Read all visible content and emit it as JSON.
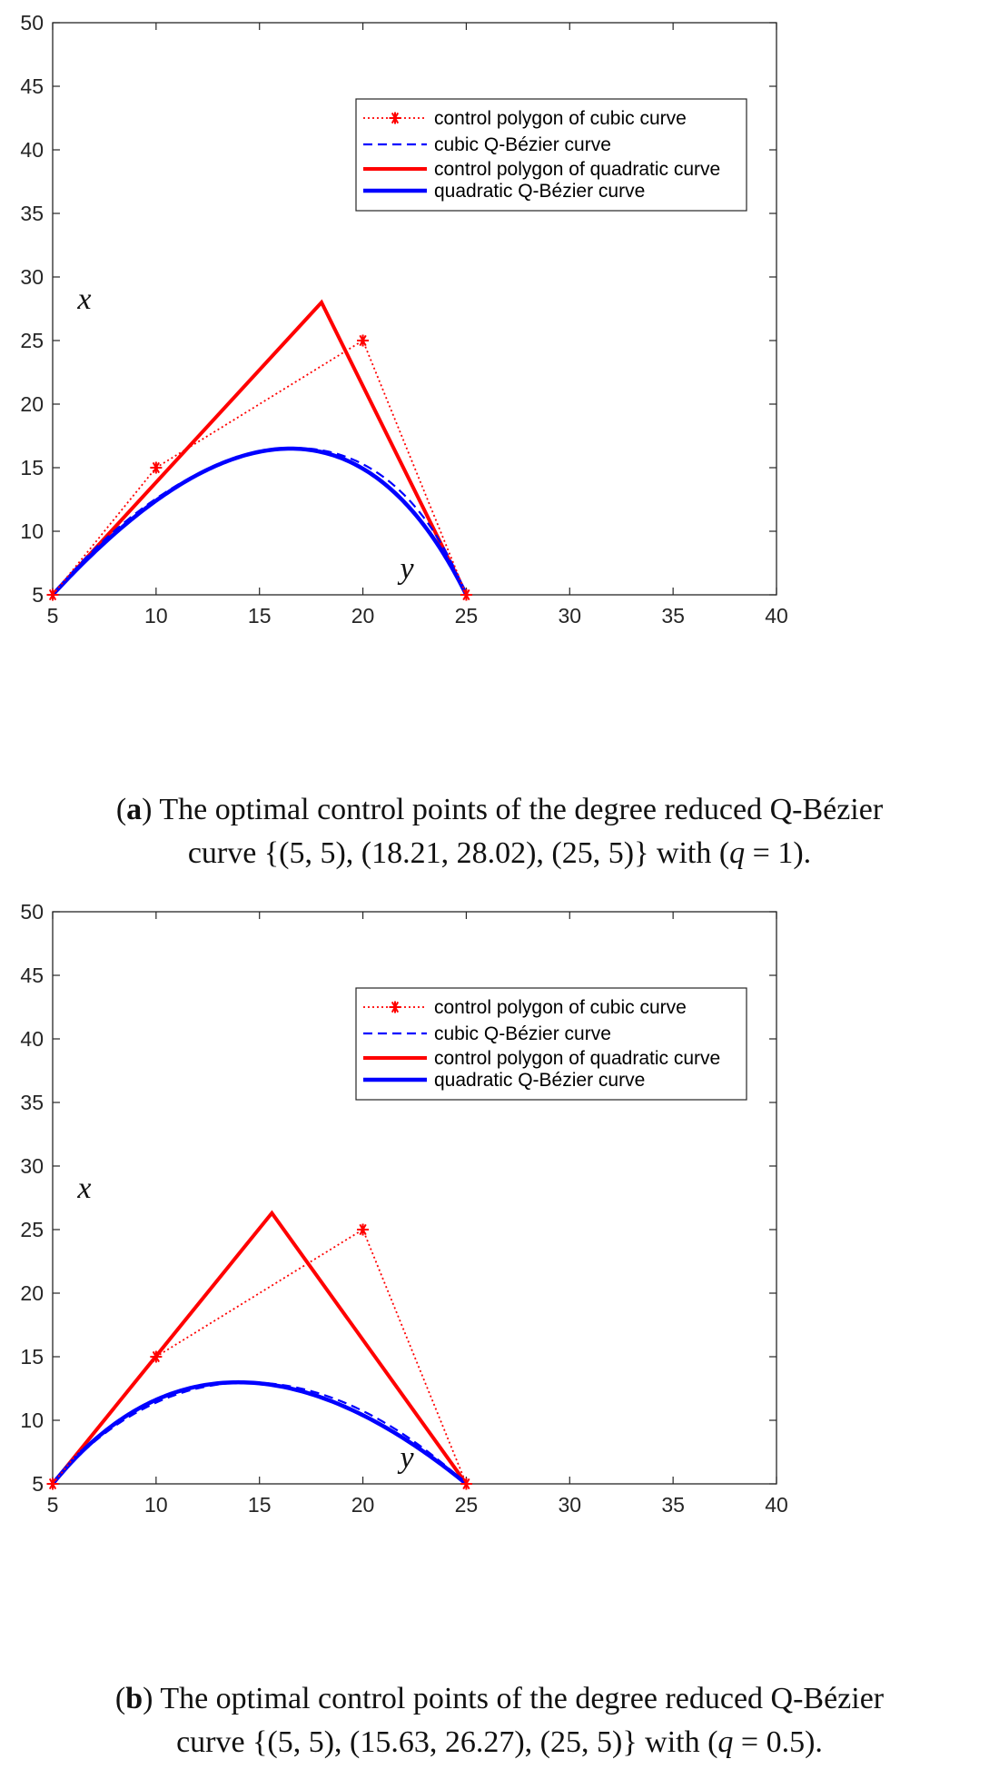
{
  "chart_data": [
    {
      "type": "line",
      "panel": "a",
      "xlim": [
        5,
        40
      ],
      "ylim": [
        5,
        50
      ],
      "xticks": [
        "5",
        "10",
        "15",
        "20",
        "25",
        "30",
        "35",
        "40"
      ],
      "yticks": [
        "5",
        "10",
        "15",
        "20",
        "25",
        "30",
        "35",
        "40",
        "45",
        "50"
      ],
      "x_tick_values": [
        5,
        10,
        15,
        20,
        25,
        30,
        35,
        40
      ],
      "y_tick_values": [
        5,
        10,
        15,
        20,
        25,
        30,
        35,
        40,
        45,
        50
      ],
      "annotations": [
        {
          "text": "x",
          "x": 6.2,
          "y": 27.5
        },
        {
          "text": "y",
          "x": 21.8,
          "y": 6.3
        }
      ],
      "legend": {
        "position": "top-right",
        "entries": [
          "control polygon of cubic curve",
          "cubic Q-Bézier curve",
          "control polygon of quadratic curve",
          "quadratic Q-Bézier curve"
        ]
      },
      "series": [
        {
          "name": "control polygon of cubic curve",
          "style": "dotted-star",
          "color": "#ff0000",
          "points": [
            [
              5,
              5
            ],
            [
              10,
              15
            ],
            [
              20,
              25
            ],
            [
              25,
              5
            ]
          ]
        },
        {
          "name": "cubic Q-Bézier curve",
          "style": "dashed",
          "color": "#0000ff",
          "control_points": [
            [
              5,
              5
            ],
            [
              10,
              15
            ],
            [
              20,
              25
            ],
            [
              25,
              5
            ]
          ],
          "q": 1
        },
        {
          "name": "control polygon of quadratic curve",
          "style": "solid-thick",
          "color": "#ff0000",
          "points": [
            [
              5,
              5
            ],
            [
              18,
              28
            ],
            [
              25,
              5
            ]
          ]
        },
        {
          "name": "quadratic Q-Bézier curve",
          "style": "solid-thick",
          "color": "#0000ff",
          "control_points": [
            [
              5,
              5
            ],
            [
              18,
              28
            ],
            [
              25,
              5
            ]
          ],
          "q": 1
        }
      ],
      "caption": {
        "label": "a",
        "line1": ") The optimal control points of the degree reduced Q-Bézier",
        "line2_pre": "curve {(5, 5), (18.21, 28.02), (25, 5)} with (",
        "q_symbol": "q",
        "line2_post": " = 1)."
      }
    },
    {
      "type": "line",
      "panel": "b",
      "xlim": [
        5,
        40
      ],
      "ylim": [
        5,
        50
      ],
      "xticks": [
        "5",
        "10",
        "15",
        "20",
        "25",
        "30",
        "35",
        "40"
      ],
      "yticks": [
        "5",
        "10",
        "15",
        "20",
        "25",
        "30",
        "35",
        "40",
        "45",
        "50"
      ],
      "x_tick_values": [
        5,
        10,
        15,
        20,
        25,
        30,
        35,
        40
      ],
      "y_tick_values": [
        5,
        10,
        15,
        20,
        25,
        30,
        35,
        40,
        45,
        50
      ],
      "annotations": [
        {
          "text": "x",
          "x": 6.2,
          "y": 27.5
        },
        {
          "text": "y",
          "x": 21.8,
          "y": 6.3
        }
      ],
      "legend": {
        "position": "top-right",
        "entries": [
          "control polygon of cubic curve",
          "cubic Q-Bézier curve",
          "control polygon of quadratic curve",
          "quadratic Q-Bézier curve"
        ]
      },
      "series": [
        {
          "name": "control polygon of cubic curve",
          "style": "dotted-star",
          "color": "#ff0000",
          "points": [
            [
              5,
              5
            ],
            [
              10,
              15
            ],
            [
              20,
              25
            ],
            [
              25,
              5
            ]
          ]
        },
        {
          "name": "cubic Q-Bézier curve",
          "style": "dashed",
          "color": "#0000ff",
          "control_points": [
            [
              5,
              5
            ],
            [
              10,
              15
            ],
            [
              20,
              25
            ],
            [
              25,
              5
            ]
          ],
          "q": 0.5
        },
        {
          "name": "control polygon of quadratic curve",
          "style": "solid-thick",
          "color": "#ff0000",
          "points": [
            [
              5,
              5
            ],
            [
              15.6,
              26.3
            ],
            [
              25,
              5
            ]
          ]
        },
        {
          "name": "quadratic Q-Bézier curve",
          "style": "solid-thick",
          "color": "#0000ff",
          "control_points": [
            [
              5,
              5
            ],
            [
              15.6,
              26.3
            ],
            [
              25,
              5
            ]
          ],
          "q": 0.5
        }
      ],
      "caption": {
        "label": "b",
        "line1": ") The optimal control points of the degree reduced Q-Bézier",
        "line2_pre": "curve {(5, 5), (15.63, 26.27), (25, 5)} with (",
        "q_symbol": "q",
        "line2_post": " = 0.5)."
      }
    }
  ]
}
